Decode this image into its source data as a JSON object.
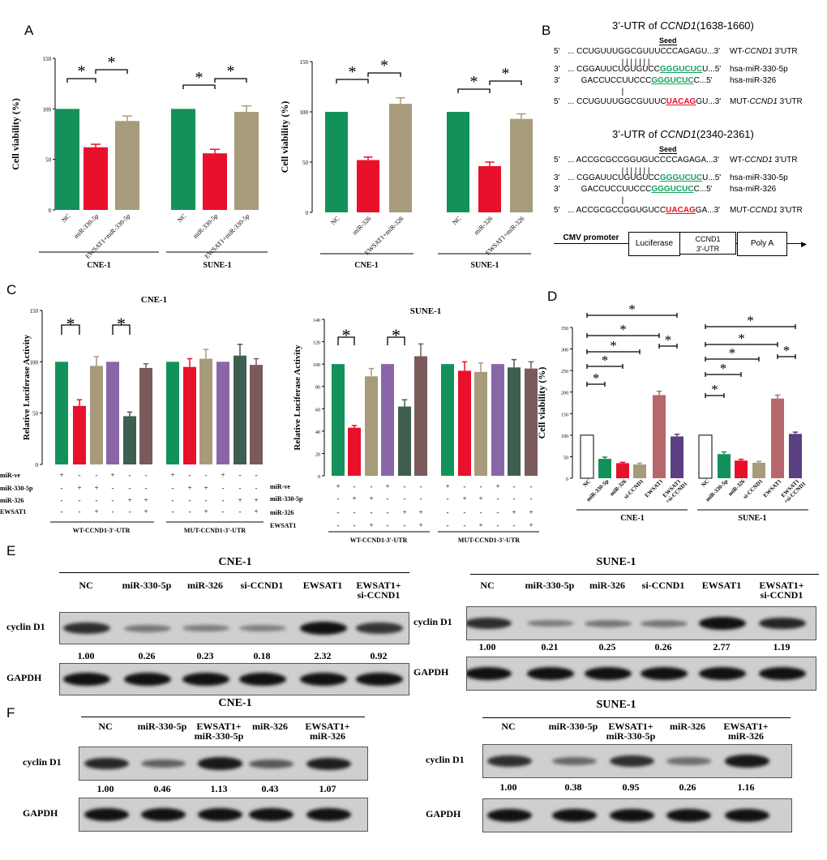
{
  "panels": [
    "A",
    "B",
    "C",
    "D",
    "E",
    "F"
  ],
  "chart_data": [
    {
      "id": "A1",
      "type": "bar",
      "ylabel": "Cell viability (%)",
      "ylim": [
        0,
        150
      ],
      "yticks": [
        0,
        50,
        100,
        150
      ],
      "categories": [
        "NC",
        "miR-330-5p",
        "EWSAT1+miR-330-5p",
        "NC",
        "miR-330-5p",
        "EWSAT1+miR-330-5p"
      ],
      "groups": [
        "CNE-1",
        "SUNE-1"
      ],
      "values": [
        100,
        62,
        88,
        100,
        56,
        97
      ],
      "errors": [
        0,
        3,
        5,
        0,
        4,
        6
      ],
      "colors": [
        "#12925a",
        "#e8102b",
        "#a79b7c",
        "#12925a",
        "#e8102b",
        "#a79b7c"
      ],
      "sig": [
        "*",
        "*",
        "*",
        "*"
      ]
    },
    {
      "id": "A2",
      "type": "bar",
      "ylabel": "Cell viability (%)",
      "ylim": [
        0,
        150
      ],
      "yticks": [
        0,
        50,
        100,
        150
      ],
      "categories": [
        "NC",
        "miR-326",
        "EWSAT1+miR-326",
        "NC",
        "miR-326",
        "EWSAT1+miR-326"
      ],
      "groups": [
        "CNE-1",
        "SUNE-1"
      ],
      "values": [
        100,
        52,
        108,
        100,
        46,
        93
      ],
      "errors": [
        0,
        3,
        6,
        0,
        4,
        5
      ],
      "colors": [
        "#12925a",
        "#e8102b",
        "#a79b7c",
        "#12925a",
        "#e8102b",
        "#a79b7c"
      ],
      "sig": [
        "*",
        "*",
        "*",
        "*"
      ]
    },
    {
      "id": "C1",
      "type": "bar",
      "title": "CNE-1",
      "ylabel": "Relative Luciferase Activity",
      "ylim": [
        0,
        150
      ],
      "yticks": [
        0,
        50,
        100,
        150
      ],
      "values": [
        100,
        57,
        96,
        100,
        47,
        94,
        100,
        95,
        103,
        100,
        106,
        97
      ],
      "errors": [
        0,
        6,
        9,
        0,
        4,
        4,
        0,
        8,
        9,
        0,
        11,
        6
      ],
      "colors": [
        "#12925a",
        "#e8102b",
        "#a79b7c",
        "#8a66a8",
        "#3e5e4f",
        "#7a5a5a",
        "#12925a",
        "#e8102b",
        "#a79b7c",
        "#8a66a8",
        "#3e5e4f",
        "#7a5a5a"
      ],
      "groups": [
        "WT-CCND1-3'-UTR",
        "MUT-CCND1-3'-UTR"
      ],
      "row_labels": [
        "miR-ve",
        "miR-330-5p",
        "miR-326",
        "EWSAT1"
      ],
      "matrix": [
        [
          "+",
          "-",
          "-",
          "+",
          "-",
          "-",
          "+",
          "-",
          "-",
          "+",
          "-",
          "-"
        ],
        [
          "-",
          "+",
          "+",
          "-",
          "-",
          "-",
          "-",
          "+",
          "+",
          "-",
          "-",
          "-"
        ],
        [
          "-",
          "-",
          "-",
          "-",
          "+",
          "+",
          "-",
          "-",
          "-",
          "-",
          "+",
          "+"
        ],
        [
          "-",
          "-",
          "+",
          "-",
          "-",
          "+",
          "-",
          "-",
          "+",
          "-",
          "-",
          "+"
        ]
      ],
      "sig": [
        "*",
        "*"
      ]
    },
    {
      "id": "C2",
      "type": "bar",
      "title": "SUNE-1",
      "ylabel": "Relative Luciferase Activity",
      "ylim": [
        0,
        140
      ],
      "yticks": [
        0,
        20,
        40,
        60,
        80,
        100,
        120,
        140
      ],
      "values": [
        100,
        43,
        89,
        100,
        62,
        107,
        100,
        94,
        93,
        100,
        97,
        96
      ],
      "errors": [
        0,
        2,
        7,
        0,
        6,
        11,
        0,
        8,
        8,
        0,
        7,
        6
      ],
      "colors": [
        "#12925a",
        "#e8102b",
        "#a79b7c",
        "#8a66a8",
        "#3e5e4f",
        "#7a5a5a",
        "#12925a",
        "#e8102b",
        "#a79b7c",
        "#8a66a8",
        "#3e5e4f",
        "#7a5a5a"
      ],
      "groups": [
        "WT-CCND1-3'-UTR",
        "MUT-CCND1-3'-UTR"
      ],
      "row_labels": [
        "miR-ve",
        "miR-330-5p",
        "miR-326",
        "EWSAT1"
      ],
      "matrix": [
        [
          "+",
          "-",
          "-",
          "+",
          "-",
          "-",
          "+",
          "-",
          "-",
          "+",
          "-",
          "-"
        ],
        [
          "-",
          "+",
          "+",
          "-",
          "-",
          "-",
          "-",
          "+",
          "+",
          "-",
          "-",
          "-"
        ],
        [
          "-",
          "-",
          "-",
          "-",
          "+",
          "+",
          "-",
          "-",
          "-",
          "-",
          "+",
          "+"
        ],
        [
          "-",
          "-",
          "+",
          "-",
          "-",
          "+",
          "-",
          "-",
          "+",
          "-",
          "-",
          "+"
        ]
      ],
      "sig": [
        "*",
        "*"
      ]
    },
    {
      "id": "D",
      "type": "bar",
      "ylabel": "Cell viability (%)",
      "ylim": [
        0,
        350
      ],
      "yticks": [
        0,
        50,
        100,
        150,
        200,
        250,
        300,
        350
      ],
      "categories": [
        "NC",
        "miR-330-5p",
        "miR-326",
        "si-CCND1",
        "EWSAT1",
        "EWSAT1 +si-CCND1",
        "NC",
        "miR-330-5p",
        "miR-326",
        "si-CCND1",
        "EWSAT1",
        "EWSAT1 +si-CCND1"
      ],
      "groups": [
        "CNE-1",
        "SUNE-1"
      ],
      "values": [
        100,
        45,
        35,
        32,
        193,
        97,
        100,
        56,
        41,
        36,
        185,
        103
      ],
      "errors": [
        0,
        4,
        2,
        3,
        9,
        5,
        0,
        5,
        3,
        3,
        8,
        4
      ],
      "colors": [
        "#ffffff",
        "#12925a",
        "#e8102b",
        "#a79b7c",
        "#b5676b",
        "#5b3f82",
        "#ffffff",
        "#12925a",
        "#e8102b",
        "#a79b7c",
        "#b5676b",
        "#5b3f82"
      ],
      "sig": [
        "*",
        "*",
        "*",
        "*",
        "*",
        "*",
        "*",
        "*",
        "*",
        "*",
        "*",
        "*"
      ]
    }
  ],
  "panelB": {
    "title1_prefix": "3’-UTR of ",
    "title1_gene": "CCND1",
    "title1_range": "(1638-1660)",
    "title2_prefix": "3’-UTR of ",
    "title2_gene": "CCND1",
    "title2_range": "(2340-2361)",
    "seed": "Seed",
    "block1": [
      {
        "p": "5'",
        "s": "... CCUGUUUGGCGUUUCCCAGAGU...3'",
        "l": "WT-CCND1 3'UTR"
      },
      {
        "p": "",
        "s": "                        | | | | | | |",
        "l": ""
      },
      {
        "p": "3'",
        "s": "... CGGAUUCUGUGUCCGGGUCUCU...5'",
        "l": "hsa-miR-330-5p"
      },
      {
        "p": "3'",
        "s": "      GACCUCCUUCCCGGGUCUCC...5'",
        "l": "hsa-miR-326"
      },
      {
        "p": "",
        "s": "                        |",
        "l": ""
      },
      {
        "p": "5'",
        "s": "... CCUGUUUGGCGUUUCUACAGGU...3'",
        "l": "MUT-CCND1 3'UTR"
      }
    ],
    "block2": [
      {
        "p": "5'",
        "s": "... ACCGCGCCGGUGUCCCCAGAGA...3'",
        "l": "WT-CCND1 3'UTR"
      },
      {
        "p": "",
        "s": "                        | | | | | | |",
        "l": ""
      },
      {
        "p": "3'",
        "s": "... CGGAUUCUGUGUCCGGGUCUCU...5'",
        "l": "hsa-miR-330-5p"
      },
      {
        "p": "3'",
        "s": "      GACCUCCUUCCCGGGUCUCC...5'",
        "l": "hsa-miR-326"
      },
      {
        "p": "",
        "s": "                        |",
        "l": ""
      },
      {
        "p": "5'",
        "s": "... ACCGCGCCGGUGUCCUACAGGA...3'",
        "l": "MUT-CCND1 3'UTR"
      }
    ],
    "construct": [
      "CMV promoter",
      "Luciferase",
      "CCND1\n3'-UTR",
      "Poly A"
    ]
  },
  "panelE": {
    "left_title": "CNE-1",
    "right_title": "SUNE-1",
    "lanes": [
      "NC",
      "miR-330-5p",
      "miR-326",
      "si-CCND1",
      "EWSAT1",
      "EWSAT1+\nsi-CCND1"
    ],
    "protein": "cyclin D1",
    "control": "GAPDH",
    "left_values": [
      "1.00",
      "0.26",
      "0.23",
      "0.18",
      "2.32",
      "0.92"
    ],
    "right_values": [
      "1.00",
      "0.21",
      "0.25",
      "0.26",
      "2.77",
      "1.19"
    ],
    "left_intensity": [
      0.8,
      0.3,
      0.25,
      0.22,
      1.0,
      0.75
    ],
    "right_intensity": [
      0.8,
      0.25,
      0.3,
      0.3,
      1.0,
      0.85
    ]
  },
  "panelF": {
    "left_title": "CNE-1",
    "right_title": "SUNE-1",
    "lanes": [
      "NC",
      "miR-330-5p",
      "EWSAT1+\nmiR-330-5p",
      "miR-326",
      "EWSAT1+\nmiR-326"
    ],
    "protein": "cyclin D1",
    "control": "GAPDH",
    "left_values": [
      "1.00",
      "0.46",
      "1.13",
      "0.43",
      "1.07"
    ],
    "right_values": [
      "1.00",
      "0.38",
      "0.95",
      "0.26",
      "1.16"
    ],
    "left_intensity": [
      0.85,
      0.45,
      0.95,
      0.5,
      0.9
    ],
    "right_intensity": [
      0.8,
      0.4,
      0.8,
      0.35,
      0.95
    ]
  }
}
